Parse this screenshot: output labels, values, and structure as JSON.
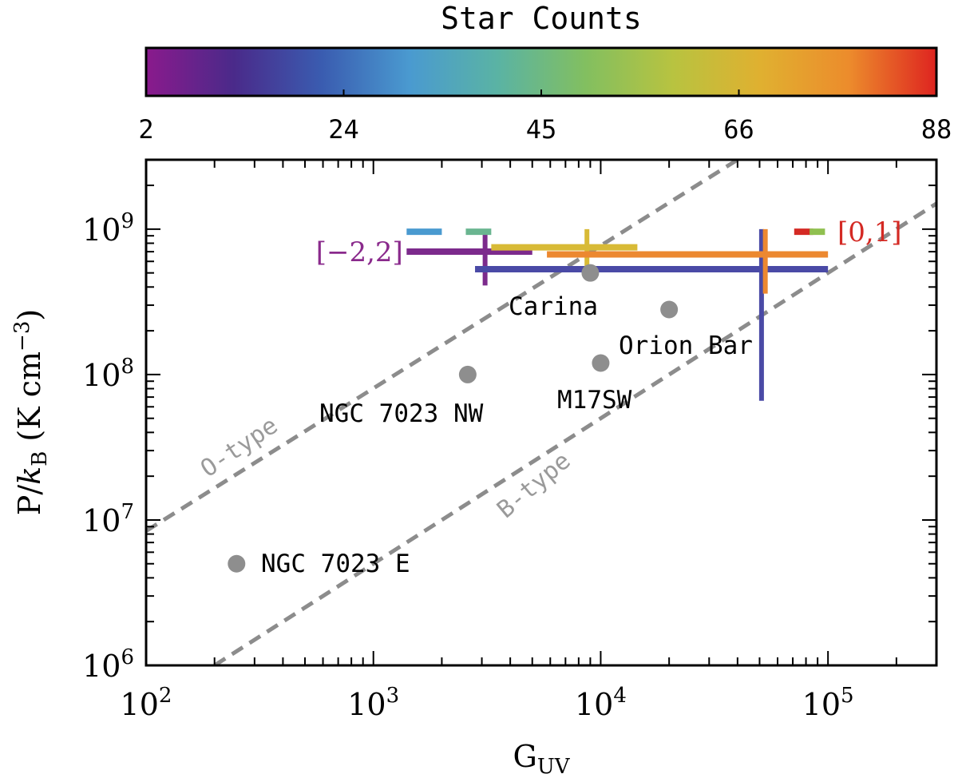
{
  "chart_data": {
    "type": "scatter",
    "title": "",
    "xlabel": "G",
    "xlabel_sub": "UV",
    "ylabel_main": "P/",
    "ylabel_k": "k",
    "ylabel_sub": "B",
    "ylabel_units": "(K cm",
    "ylabel_exp": "−3",
    "ylabel_close": ")",
    "xscale": "log",
    "yscale": "log",
    "xlim": [
      100,
      300000
    ],
    "ylim": [
      1000000,
      3000000000
    ],
    "x_ticks": [
      {
        "value": 100,
        "base": "10",
        "exp": "2"
      },
      {
        "value": 1000,
        "base": "10",
        "exp": "3"
      },
      {
        "value": 10000,
        "base": "10",
        "exp": "4"
      },
      {
        "value": 100000,
        "base": "10",
        "exp": "5"
      }
    ],
    "y_ticks": [
      {
        "value": 1000000,
        "base": "10",
        "exp": "6"
      },
      {
        "value": 10000000,
        "base": "10",
        "exp": "7"
      },
      {
        "value": 100000000,
        "base": "10",
        "exp": "8"
      },
      {
        "value": 1000000000,
        "base": "10",
        "exp": "9"
      }
    ],
    "colorbar": {
      "title": "Star Counts",
      "ticks": [
        "2",
        "24",
        "45",
        "66",
        "88"
      ],
      "min": 2,
      "max": 88,
      "colors": [
        "#8a1a8c",
        "#4a2a8a",
        "#3a5cb0",
        "#4a9ad0",
        "#5ab3a4",
        "#82bf60",
        "#b8c340",
        "#e0b030",
        "#ec8c2c",
        "#de2420"
      ]
    },
    "points": [
      {
        "name": "Carina",
        "x": 9000,
        "y": 500000000
      },
      {
        "name": "Orion Bar",
        "x": 20000,
        "y": 280000000
      },
      {
        "name": "NGC 7023 NW",
        "x": 2600,
        "y": 100000000
      },
      {
        "name": "M17SW",
        "x": 10000,
        "y": 120000000
      },
      {
        "name": "NGC 7023 E",
        "x": 250,
        "y": 5000000
      }
    ],
    "reference_lines": [
      {
        "name": "O-type",
        "x1": 100,
        "y1": 8400000,
        "x2": 40000,
        "y2": 3000000000
      },
      {
        "name": "B-type",
        "x1": 200,
        "y1": 1000000,
        "x2": 300000,
        "y2": 1500000000
      }
    ],
    "bar_segments": [
      {
        "series": "purple",
        "color": "#7c2a8c",
        "x1": 1400,
        "x2": 5000,
        "y": 700000000
      },
      {
        "series": "purple-cross",
        "color": "#7c2a8c",
        "x": 3100,
        "y1": 410000000,
        "y2": 1000000000
      },
      {
        "series": "navy",
        "color": "#4a4aa6",
        "x1": 2800,
        "x2": 100000,
        "y": 530000000
      },
      {
        "series": "navy-cross",
        "color": "#4a4aa6",
        "x": 51000,
        "y1": 66000000,
        "y2": 1000000000
      },
      {
        "series": "yellow",
        "color": "#d8ba36",
        "x1": 3300,
        "x2": 14500,
        "y": 750000000
      },
      {
        "series": "yellow-cross",
        "color": "#d8ba36",
        "x": 8700,
        "y1": 450000000,
        "y2": 1000000000
      },
      {
        "series": "orange",
        "color": "#ec8830",
        "x1": 5800,
        "x2": 100000,
        "y": 670000000
      },
      {
        "series": "orange-cross",
        "color": "#ec8830",
        "x": 53000,
        "y1": 360000000,
        "y2": 1000000000
      }
    ],
    "dashes": [
      {
        "color": "#4a9ad0",
        "x1": 1400,
        "x2": 2000,
        "y": 960000000
      },
      {
        "color": "#6ab590",
        "x1": 2550,
        "x2": 3300,
        "y": 960000000
      },
      {
        "color": "#d42a24",
        "x1": 71000,
        "x2": 86000,
        "y": 960000000
      },
      {
        "color": "#90c050",
        "x1": 83000,
        "x2": 97000,
        "y": 960000000
      }
    ],
    "range_labels": [
      {
        "text": "[−2,2]",
        "color": "#8a2a8c",
        "x": 1350,
        "y": 700000000,
        "anchor": "end"
      },
      {
        "text": "[0,1]",
        "color": "#d42a24",
        "x": 110000,
        "y": 960000000,
        "anchor": "start"
      }
    ]
  }
}
